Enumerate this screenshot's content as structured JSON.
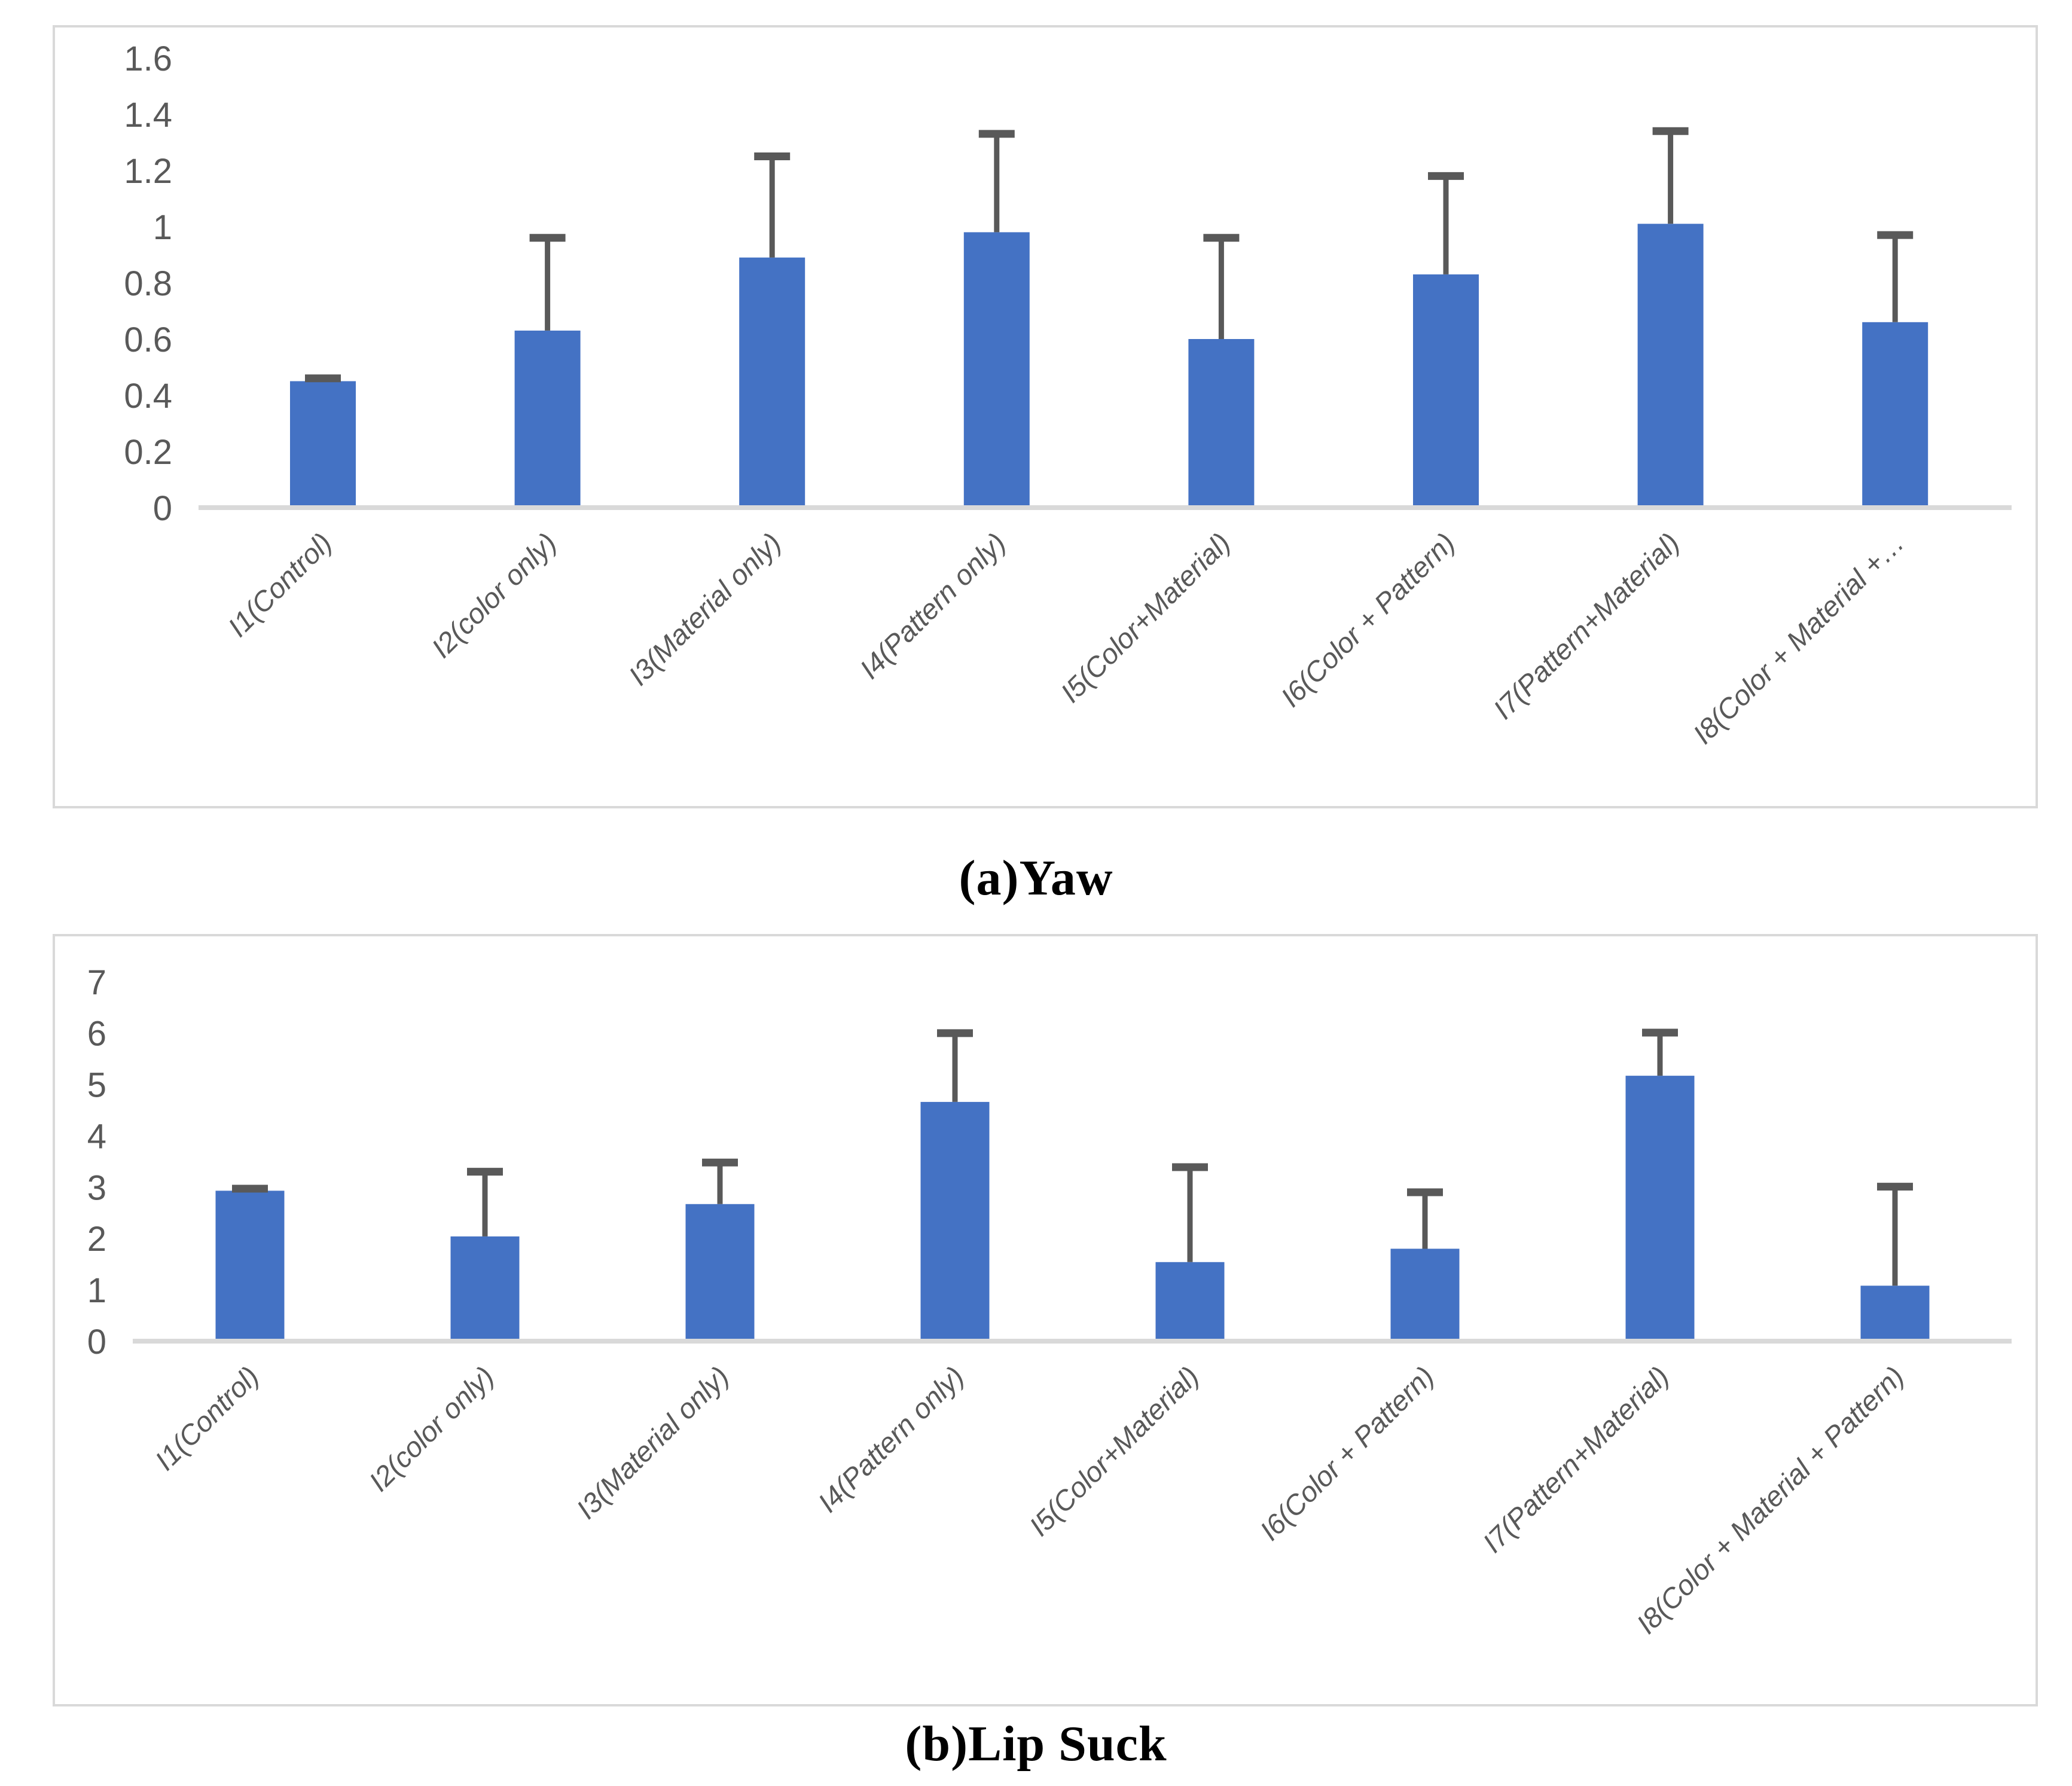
{
  "captions": {
    "a": "(a)Yaw",
    "b": "(b)Lip Suck"
  },
  "colors": {
    "bar": "#4472C4",
    "error_bar": "#595959",
    "axis_line": "#D9D9D9",
    "tick_text": "#595959",
    "panel_border": "#D9D9D9",
    "background": "#FFFFFF"
  },
  "chart_data": [
    {
      "type": "bar",
      "title": "(a)Yaw",
      "categories": [
        "I1(Control)",
        "I2(color only)",
        "I3(Material only)",
        "I4(Pattern only)",
        "I5(Color+Material)",
        "I6(Color + Pattern)",
        "I7(Pattern+Material)",
        "I8(Color + Material +…"
      ],
      "values": [
        0.45,
        0.63,
        0.89,
        0.98,
        0.6,
        0.83,
        1.01,
        0.66
      ],
      "error_top": [
        0.46,
        0.96,
        1.25,
        1.33,
        0.96,
        1.18,
        1.34,
        0.97
      ],
      "xlabel": "",
      "ylabel": "",
      "ylim": [
        0,
        1.6
      ],
      "yticks": [
        "0",
        "0.2",
        "0.4",
        "0.6",
        "0.8",
        "1",
        "1.2",
        "1.4",
        "1.6"
      ],
      "grid": false,
      "legend": "none",
      "bar_color": "#4472C4",
      "error_color": "#595959"
    },
    {
      "type": "bar",
      "title": "(b)Lip Suck",
      "categories": [
        "I1(Control)",
        "I2(color only)",
        "I3(Material only)",
        "I4(Pattern only)",
        "I5(Color+Material)",
        "I6(Color + Pattern)",
        "I7(Pattern+Material)",
        "I8(Color + Material + Pattern)"
      ],
      "values": [
        2.93,
        2.04,
        2.67,
        4.66,
        1.54,
        1.8,
        5.17,
        1.08
      ],
      "error_top": [
        2.97,
        3.3,
        3.48,
        6.0,
        3.39,
        2.9,
        6.01,
        3.01
      ],
      "xlabel": "",
      "ylabel": "",
      "ylim": [
        0,
        7
      ],
      "yticks": [
        "0",
        "1",
        "2",
        "3",
        "4",
        "5",
        "6",
        "7"
      ],
      "grid": false,
      "legend": "none",
      "bar_color": "#4472C4",
      "error_color": "#595959"
    }
  ]
}
